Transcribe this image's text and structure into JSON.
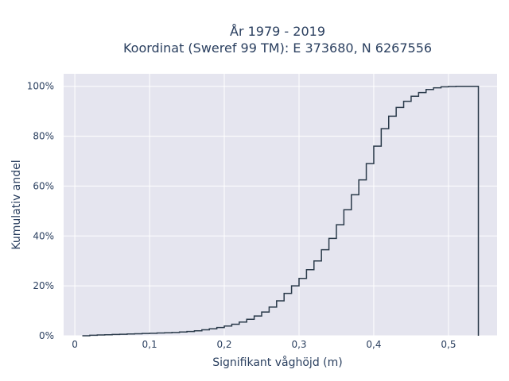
{
  "chart_data": {
    "type": "line",
    "line_shape": "step-ecdf",
    "title_line1": "År 1979 - 2019",
    "title_line2": "Koordinat (Sweref 99 TM): E 373680, N 6267556",
    "xlabel": "Signifikant våghöjd (m)",
    "ylabel": "Kumulativ andel",
    "xlim": [
      -0.015,
      0.565
    ],
    "ylim": [
      0,
      1.05
    ],
    "x_ticks": [
      0,
      0.1,
      0.2,
      0.3,
      0.4,
      0.5
    ],
    "x_tick_labels": [
      "0",
      "0,1",
      "0,2",
      "0,3",
      "0,4",
      "0,5"
    ],
    "y_ticks": [
      0,
      0.2,
      0.4,
      0.6,
      0.8,
      1.0
    ],
    "y_tick_labels": [
      "0%",
      "20%",
      "40%",
      "60%",
      "80%",
      "100%"
    ],
    "grid": true,
    "line_color": "#2a3a4a",
    "plot_background": "#e5e5ef",
    "x": [
      0.01,
      0.02,
      0.03,
      0.04,
      0.05,
      0.06,
      0.07,
      0.08,
      0.09,
      0.1,
      0.11,
      0.12,
      0.13,
      0.14,
      0.15,
      0.16,
      0.17,
      0.18,
      0.19,
      0.2,
      0.21,
      0.22,
      0.23,
      0.24,
      0.25,
      0.26,
      0.27,
      0.28,
      0.29,
      0.3,
      0.31,
      0.32,
      0.33,
      0.34,
      0.35,
      0.36,
      0.37,
      0.38,
      0.39,
      0.4,
      0.41,
      0.42,
      0.43,
      0.44,
      0.45,
      0.46,
      0.47,
      0.48,
      0.49,
      0.5,
      0.51,
      0.52,
      0.53,
      0.54
    ],
    "y": [
      0.0,
      0.002,
      0.003,
      0.004,
      0.005,
      0.006,
      0.007,
      0.008,
      0.009,
      0.01,
      0.011,
      0.012,
      0.013,
      0.015,
      0.017,
      0.02,
      0.024,
      0.028,
      0.033,
      0.039,
      0.046,
      0.055,
      0.066,
      0.079,
      0.095,
      0.115,
      0.14,
      0.17,
      0.2,
      0.23,
      0.265,
      0.3,
      0.345,
      0.39,
      0.445,
      0.505,
      0.565,
      0.625,
      0.69,
      0.76,
      0.83,
      0.88,
      0.915,
      0.94,
      0.96,
      0.975,
      0.987,
      0.994,
      0.998,
      0.999,
      1.0,
      1.0,
      1.0,
      1.0
    ]
  }
}
